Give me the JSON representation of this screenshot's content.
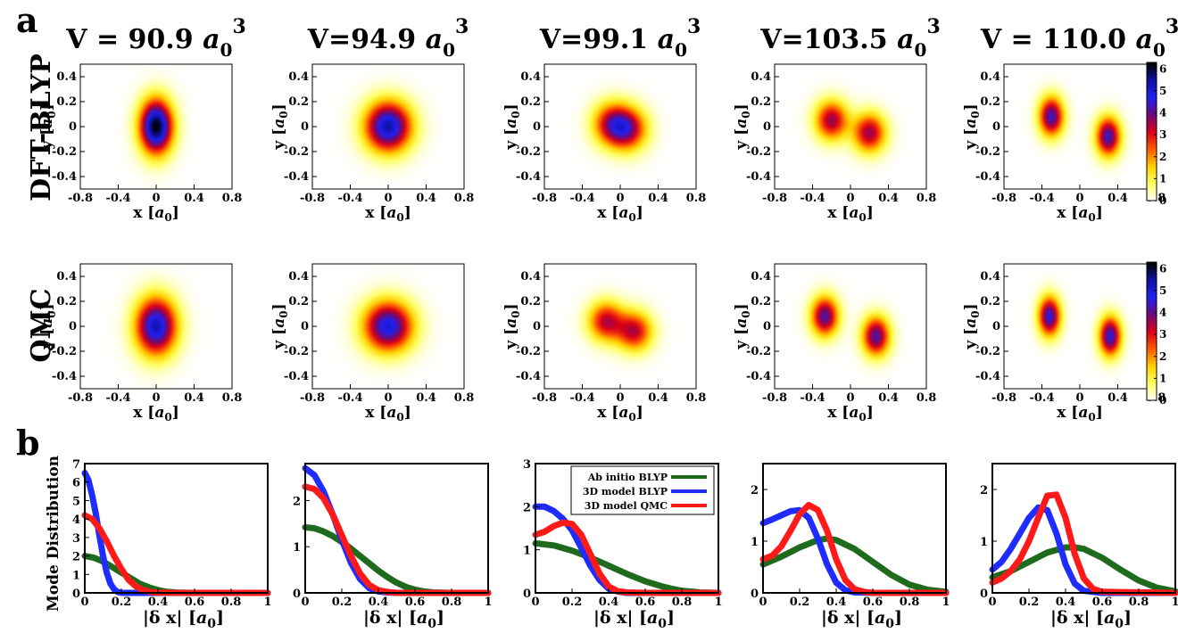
{
  "figure": {
    "panel_a_label": "a",
    "panel_b_label": "b",
    "row_labels": [
      "DFT-BLYP",
      "QMC"
    ],
    "column_titles": [
      "V = 90.9 a0 3",
      "V=94.9 a0 3",
      "V=99.1 a0 3",
      "V=103.5 a0 3",
      "V = 110.0 a0 3"
    ],
    "column_title_parts": [
      {
        "prefix": "V = 90.9 ",
        "sym": "a",
        "sub": "0",
        "sup": "3"
      },
      {
        "prefix": "V=94.9 ",
        "sym": "a",
        "sub": "0",
        "sup": "3"
      },
      {
        "prefix": "V=99.1 ",
        "sym": "a",
        "sub": "0",
        "sup": "3"
      },
      {
        "prefix": "V=103.5 ",
        "sym": "a",
        "sub": "0",
        "sup": "3"
      },
      {
        "prefix": "V = 110.0 ",
        "sym": "a",
        "sub": "0",
        "sup": "3"
      }
    ]
  },
  "colors": {
    "green": "#1e6b1e",
    "blue": "#1e2cff",
    "red": "#ff1a1a",
    "colormap": [
      "#ffffff",
      "#ffff66",
      "#ffd000",
      "#ff5a00",
      "#d80018",
      "#6a0a7a",
      "#2020f0",
      "#1010a0",
      "#000000"
    ]
  },
  "chart_data": [
    {
      "type": "heatmap",
      "row": "DFT-BLYP",
      "column": "V = 90.9 a0 3",
      "xlabel": "x [a0]",
      "ylabel": "y [a0]",
      "xlim": [
        -0.8,
        0.8
      ],
      "ylim": [
        -0.5,
        0.5
      ],
      "xticks": [
        "-0.8",
        "-0.4",
        "0",
        "0.4",
        "0.8"
      ],
      "yticks": [
        "0.4",
        "0.2",
        "0",
        "-0.2",
        "-0.4"
      ],
      "blobs": [
        {
          "x": 0.0,
          "y": 0.0,
          "sx": 0.12,
          "sy": 0.15,
          "peak": 6.3
        }
      ]
    },
    {
      "type": "heatmap",
      "row": "DFT-BLYP",
      "column": "V=94.9 a0 3",
      "xlabel": "x [a0]",
      "ylabel": "y [a0]",
      "xlim": [
        -0.8,
        0.8
      ],
      "ylim": [
        -0.5,
        0.5
      ],
      "xticks": [
        "-0.8",
        "-0.4",
        "0",
        "0.4",
        "0.8"
      ],
      "yticks": [
        "0.4",
        "0.2",
        "0",
        "-0.2",
        "-0.4"
      ],
      "blobs": [
        {
          "x": 0.0,
          "y": 0.0,
          "sx": 0.17,
          "sy": 0.14,
          "peak": 5.4
        }
      ]
    },
    {
      "type": "heatmap",
      "row": "DFT-BLYP",
      "column": "V=99.1 a0 3",
      "xlabel": "x [a0]",
      "ylabel": "y [a0]",
      "xlim": [
        -0.8,
        0.8
      ],
      "ylim": [
        -0.5,
        0.5
      ],
      "xticks": [
        "-0.8",
        "-0.4",
        "0",
        "0.4",
        "0.8"
      ],
      "yticks": [
        "0.4",
        "0.2",
        "0",
        "-0.2",
        "-0.4"
      ],
      "blobs": [
        {
          "x": -0.09,
          "y": 0.02,
          "sx": 0.14,
          "sy": 0.12,
          "peak": 3.2
        },
        {
          "x": 0.09,
          "y": -0.02,
          "sx": 0.14,
          "sy": 0.12,
          "peak": 3.2
        }
      ]
    },
    {
      "type": "heatmap",
      "row": "DFT-BLYP",
      "column": "V=103.5 a0 3",
      "xlabel": "x [a0]",
      "ylabel": "y [a0]",
      "xlim": [
        -0.8,
        0.8
      ],
      "ylim": [
        -0.5,
        0.5
      ],
      "xticks": [
        "-0.8",
        "-0.4",
        "0",
        "0.4",
        "0.8"
      ],
      "yticks": [
        "0.4",
        "0.2",
        "0",
        "-0.2",
        "-0.4"
      ],
      "blobs": [
        {
          "x": -0.2,
          "y": 0.05,
          "sx": 0.12,
          "sy": 0.11,
          "peak": 3.6
        },
        {
          "x": 0.2,
          "y": -0.05,
          "sx": 0.12,
          "sy": 0.11,
          "peak": 3.6
        }
      ]
    },
    {
      "type": "heatmap",
      "row": "DFT-BLYP",
      "column": "V = 110.0 a0 3",
      "xlabel": "x [a0]",
      "ylabel": "y [a0]",
      "xlim": [
        -0.8,
        0.8
      ],
      "ylim": [
        -0.5,
        0.5
      ],
      "xticks": [
        "-0.8",
        "-0.4",
        "0",
        "0.4",
        "0.8"
      ],
      "yticks": [
        "0.4",
        "0.2",
        "0",
        "-0.2",
        "-0.4"
      ],
      "blobs": [
        {
          "x": -0.3,
          "y": 0.08,
          "sx": 0.09,
          "sy": 0.11,
          "peak": 4.4
        },
        {
          "x": 0.3,
          "y": -0.08,
          "sx": 0.09,
          "sy": 0.11,
          "peak": 4.4
        }
      ],
      "colorbar": {
        "ticks": [
          "0",
          "1",
          "2",
          "3",
          "4",
          "5",
          "6"
        ],
        "range": [
          0,
          6.3
        ]
      }
    },
    {
      "type": "heatmap",
      "row": "QMC",
      "column": "V = 90.9 a0 3",
      "xlabel": "x [a0]",
      "ylabel": "y [a0]",
      "xlim": [
        -0.8,
        0.8
      ],
      "ylim": [
        -0.5,
        0.5
      ],
      "xticks": [
        "-0.8",
        "-0.4",
        "0",
        "0.4",
        "0.8"
      ],
      "yticks": [
        "0.4",
        "0.2",
        "0",
        "-0.2",
        "-0.4"
      ],
      "blobs": [
        {
          "x": 0.0,
          "y": 0.0,
          "sx": 0.15,
          "sy": 0.16,
          "peak": 5.3
        }
      ]
    },
    {
      "type": "heatmap",
      "row": "QMC",
      "column": "V=94.9 a0 3",
      "xlabel": "x [a0]",
      "ylabel": "y [a0]",
      "xlim": [
        -0.8,
        0.8
      ],
      "ylim": [
        -0.5,
        0.5
      ],
      "xticks": [
        "-0.8",
        "-0.4",
        "0",
        "0.4",
        "0.8"
      ],
      "yticks": [
        "0.4",
        "0.2",
        "0",
        "-0.2",
        "-0.4"
      ],
      "blobs": [
        {
          "x": 0.0,
          "y": 0.0,
          "sx": 0.18,
          "sy": 0.14,
          "peak": 5.0
        }
      ]
    },
    {
      "type": "heatmap",
      "row": "QMC",
      "column": "V=99.1 a0 3",
      "xlabel": "x [a0]",
      "ylabel": "y [a0]",
      "xlim": [
        -0.8,
        0.8
      ],
      "ylim": [
        -0.5,
        0.5
      ],
      "xticks": [
        "-0.8",
        "-0.4",
        "0",
        "0.4",
        "0.8"
      ],
      "yticks": [
        "0.4",
        "0.2",
        "0",
        "-0.2",
        "-0.4"
      ],
      "blobs": [
        {
          "x": -0.15,
          "y": 0.04,
          "sx": 0.13,
          "sy": 0.11,
          "peak": 3.3
        },
        {
          "x": 0.15,
          "y": -0.04,
          "sx": 0.13,
          "sy": 0.11,
          "peak": 3.3
        }
      ]
    },
    {
      "type": "heatmap",
      "row": "QMC",
      "column": "V=103.5 a0 3",
      "xlabel": "x [a0]",
      "ylabel": "y [a0]",
      "xlim": [
        -0.8,
        0.8
      ],
      "ylim": [
        -0.5,
        0.5
      ],
      "xticks": [
        "-0.8",
        "-0.4",
        "0",
        "0.4",
        "0.8"
      ],
      "yticks": [
        "0.4",
        "0.2",
        "0",
        "-0.2",
        "-0.4"
      ],
      "blobs": [
        {
          "x": -0.27,
          "y": 0.08,
          "sx": 0.1,
          "sy": 0.11,
          "peak": 4.2
        },
        {
          "x": 0.27,
          "y": -0.08,
          "sx": 0.1,
          "sy": 0.11,
          "peak": 4.2
        }
      ]
    },
    {
      "type": "heatmap",
      "row": "QMC",
      "column": "V = 110.0 a0 3",
      "xlabel": "x [a0]",
      "ylabel": "y [a0]",
      "xlim": [
        -0.8,
        0.8
      ],
      "ylim": [
        -0.5,
        0.5
      ],
      "xticks": [
        "-0.8",
        "-0.4",
        "0",
        "0.4",
        "0.8"
      ],
      "yticks": [
        "0.4",
        "0.2",
        "0",
        "-0.2",
        "-0.4"
      ],
      "blobs": [
        {
          "x": -0.32,
          "y": 0.08,
          "sx": 0.08,
          "sy": 0.11,
          "peak": 4.6
        },
        {
          "x": 0.32,
          "y": -0.08,
          "sx": 0.08,
          "sy": 0.11,
          "peak": 4.6
        }
      ],
      "colorbar": {
        "ticks": [
          "0",
          "1",
          "2",
          "3",
          "4",
          "5",
          "6"
        ],
        "range": [
          0,
          6.3
        ]
      }
    },
    {
      "type": "line",
      "column": "V = 90.9 a0 3",
      "xlabel": "|δ x| [a0]",
      "ylabel": "Mode Distribution",
      "xlim": [
        0,
        1
      ],
      "ylim": [
        0,
        7
      ],
      "xticks": [
        "0",
        "0.2",
        "0.4",
        "0.6",
        "0.8",
        "1"
      ],
      "yticks": [
        "0",
        "1",
        "2",
        "3",
        "4",
        "5",
        "6",
        "7"
      ],
      "series": [
        {
          "name": "Ab initio BLYP",
          "color": "green",
          "x": [
            0,
            0.05,
            0.1,
            0.15,
            0.2,
            0.25,
            0.3,
            0.35,
            0.4,
            0.45,
            0.5,
            0.6,
            0.8,
            1.0
          ],
          "y": [
            2.0,
            1.9,
            1.7,
            1.4,
            1.1,
            0.8,
            0.5,
            0.3,
            0.15,
            0.06,
            0.02,
            0,
            0,
            0
          ]
        },
        {
          "name": "3D model BLYP",
          "color": "blue",
          "x": [
            0,
            0.02,
            0.04,
            0.06,
            0.08,
            0.1,
            0.12,
            0.14,
            0.16,
            0.18,
            0.2,
            0.3,
            0.5,
            1.0
          ],
          "y": [
            6.5,
            6.1,
            5.3,
            4.3,
            3.1,
            2.0,
            1.1,
            0.5,
            0.2,
            0.05,
            0,
            0,
            0,
            0
          ]
        },
        {
          "name": "3D model QMC",
          "color": "red",
          "x": [
            0,
            0.04,
            0.08,
            0.12,
            0.16,
            0.2,
            0.24,
            0.28,
            0.32,
            0.36,
            0.4,
            0.5,
            1.0
          ],
          "y": [
            4.2,
            4.0,
            3.5,
            2.8,
            2.0,
            1.3,
            0.7,
            0.35,
            0.15,
            0.05,
            0.02,
            0,
            0
          ]
        }
      ]
    },
    {
      "type": "line",
      "column": "V=94.9 a0 3",
      "xlabel": "|δ x| [a0]",
      "ylabel": "",
      "xlim": [
        0,
        1
      ],
      "ylim": [
        0,
        2.8
      ],
      "xticks": [
        "0",
        "0.2",
        "0.4",
        "0.6",
        "0.8",
        "1"
      ],
      "yticks": [
        "0",
        "1",
        "2"
      ],
      "series": [
        {
          "name": "Ab initio BLYP",
          "color": "green",
          "x": [
            0,
            0.05,
            0.1,
            0.15,
            0.2,
            0.25,
            0.3,
            0.35,
            0.4,
            0.45,
            0.5,
            0.55,
            0.6,
            0.65,
            0.7,
            0.8,
            1.0
          ],
          "y": [
            1.42,
            1.4,
            1.33,
            1.23,
            1.1,
            0.96,
            0.8,
            0.64,
            0.48,
            0.34,
            0.22,
            0.13,
            0.07,
            0.03,
            0.01,
            0,
            0
          ]
        },
        {
          "name": "3D model BLYP",
          "color": "blue",
          "x": [
            0,
            0.05,
            0.1,
            0.15,
            0.2,
            0.25,
            0.3,
            0.35,
            0.4,
            0.45,
            0.5,
            0.6,
            1.0
          ],
          "y": [
            2.7,
            2.55,
            2.2,
            1.7,
            1.15,
            0.65,
            0.3,
            0.1,
            0.03,
            0.01,
            0,
            0,
            0
          ]
        },
        {
          "name": "3D model QMC",
          "color": "red",
          "x": [
            0,
            0.05,
            0.1,
            0.15,
            0.2,
            0.25,
            0.3,
            0.35,
            0.4,
            0.45,
            0.5,
            0.6,
            1.0
          ],
          "y": [
            2.3,
            2.25,
            2.05,
            1.7,
            1.25,
            0.8,
            0.42,
            0.17,
            0.06,
            0.02,
            0,
            0,
            0
          ]
        }
      ]
    },
    {
      "type": "line",
      "column": "V=99.1 a0 3",
      "xlabel": "|δ x| [a0]",
      "ylabel": "",
      "xlim": [
        0,
        1
      ],
      "ylim": [
        0,
        3
      ],
      "xticks": [
        "0",
        "0.2",
        "0.4",
        "0.6",
        "0.8",
        "1"
      ],
      "yticks": [
        "0",
        "1",
        "2",
        "3"
      ],
      "legend": "top-right",
      "series": [
        {
          "name": "Ab initio BLYP",
          "color": "green",
          "x": [
            0,
            0.1,
            0.2,
            0.3,
            0.4,
            0.5,
            0.6,
            0.7,
            0.75,
            0.8,
            0.85,
            0.9,
            1.0
          ],
          "y": [
            1.15,
            1.1,
            0.98,
            0.82,
            0.63,
            0.44,
            0.27,
            0.14,
            0.09,
            0.05,
            0.03,
            0.01,
            0
          ]
        },
        {
          "name": "3D model BLYP",
          "color": "blue",
          "x": [
            0,
            0.05,
            0.1,
            0.15,
            0.2,
            0.25,
            0.3,
            0.35,
            0.4,
            0.45,
            0.5,
            0.6,
            1.0
          ],
          "y": [
            2.0,
            2.0,
            1.9,
            1.72,
            1.45,
            1.05,
            0.63,
            0.3,
            0.1,
            0.03,
            0,
            0,
            0
          ]
        },
        {
          "name": "3D model QMC",
          "color": "red",
          "x": [
            0,
            0.05,
            0.1,
            0.15,
            0.2,
            0.25,
            0.3,
            0.35,
            0.4,
            0.45,
            0.5,
            0.6,
            1.0
          ],
          "y": [
            1.35,
            1.42,
            1.55,
            1.63,
            1.6,
            1.35,
            0.9,
            0.45,
            0.15,
            0.04,
            0.01,
            0,
            0
          ]
        }
      ]
    },
    {
      "type": "line",
      "column": "V=103.5 a0 3",
      "xlabel": "|δ x| [a0]",
      "ylabel": "",
      "xlim": [
        0,
        1
      ],
      "ylim": [
        0,
        2.5
      ],
      "xticks": [
        "0",
        "0.2",
        "0.4",
        "0.6",
        "0.8",
        "1"
      ],
      "yticks": [
        "0",
        "1",
        "2"
      ],
      "series": [
        {
          "name": "Ab initio BLYP",
          "color": "green",
          "x": [
            0,
            0.1,
            0.2,
            0.3,
            0.35,
            0.4,
            0.5,
            0.6,
            0.7,
            0.8,
            0.9,
            1.0
          ],
          "y": [
            0.55,
            0.7,
            0.88,
            1.02,
            1.05,
            1.02,
            0.85,
            0.6,
            0.35,
            0.16,
            0.06,
            0.02
          ]
        },
        {
          "name": "3D model BLYP",
          "color": "blue",
          "x": [
            0,
            0.05,
            0.1,
            0.15,
            0.2,
            0.25,
            0.3,
            0.35,
            0.4,
            0.45,
            0.5,
            0.6,
            1.0
          ],
          "y": [
            1.35,
            1.42,
            1.5,
            1.58,
            1.6,
            1.45,
            1.05,
            0.55,
            0.2,
            0.05,
            0.01,
            0,
            0
          ]
        },
        {
          "name": "3D model QMC",
          "color": "red",
          "x": [
            0,
            0.05,
            0.1,
            0.15,
            0.2,
            0.25,
            0.3,
            0.35,
            0.4,
            0.45,
            0.5,
            0.55,
            0.6,
            1.0
          ],
          "y": [
            0.65,
            0.72,
            0.9,
            1.2,
            1.52,
            1.7,
            1.6,
            1.2,
            0.65,
            0.25,
            0.07,
            0.02,
            0,
            0
          ]
        }
      ]
    },
    {
      "type": "line",
      "column": "V = 110.0 a0 3",
      "xlabel": "|δ x| [a0]",
      "ylabel": "",
      "xlim": [
        0,
        1
      ],
      "ylim": [
        0,
        2.5
      ],
      "xticks": [
        "0",
        "0.2",
        "0.4",
        "0.6",
        "0.8",
        "1"
      ],
      "yticks": [
        "0",
        "1",
        "2"
      ],
      "series": [
        {
          "name": "Ab initio BLYP",
          "color": "green",
          "x": [
            0,
            0.1,
            0.2,
            0.3,
            0.4,
            0.45,
            0.5,
            0.6,
            0.7,
            0.8,
            0.9,
            1.0
          ],
          "y": [
            0.3,
            0.42,
            0.6,
            0.78,
            0.88,
            0.88,
            0.85,
            0.68,
            0.45,
            0.24,
            0.1,
            0.03
          ]
        },
        {
          "name": "3D model BLYP",
          "color": "blue",
          "x": [
            0,
            0.05,
            0.1,
            0.15,
            0.2,
            0.25,
            0.3,
            0.35,
            0.4,
            0.45,
            0.5,
            0.6,
            1.0
          ],
          "y": [
            0.45,
            0.6,
            0.85,
            1.15,
            1.45,
            1.65,
            1.6,
            1.15,
            0.55,
            0.18,
            0.04,
            0,
            0
          ]
        },
        {
          "name": "3D model QMC",
          "color": "red",
          "x": [
            0,
            0.05,
            0.1,
            0.15,
            0.2,
            0.25,
            0.3,
            0.35,
            0.4,
            0.45,
            0.5,
            0.55,
            0.6,
            1.0
          ],
          "y": [
            0.2,
            0.28,
            0.42,
            0.65,
            1.0,
            1.45,
            1.88,
            1.9,
            1.45,
            0.75,
            0.28,
            0.08,
            0.02,
            0
          ]
        }
      ]
    }
  ]
}
